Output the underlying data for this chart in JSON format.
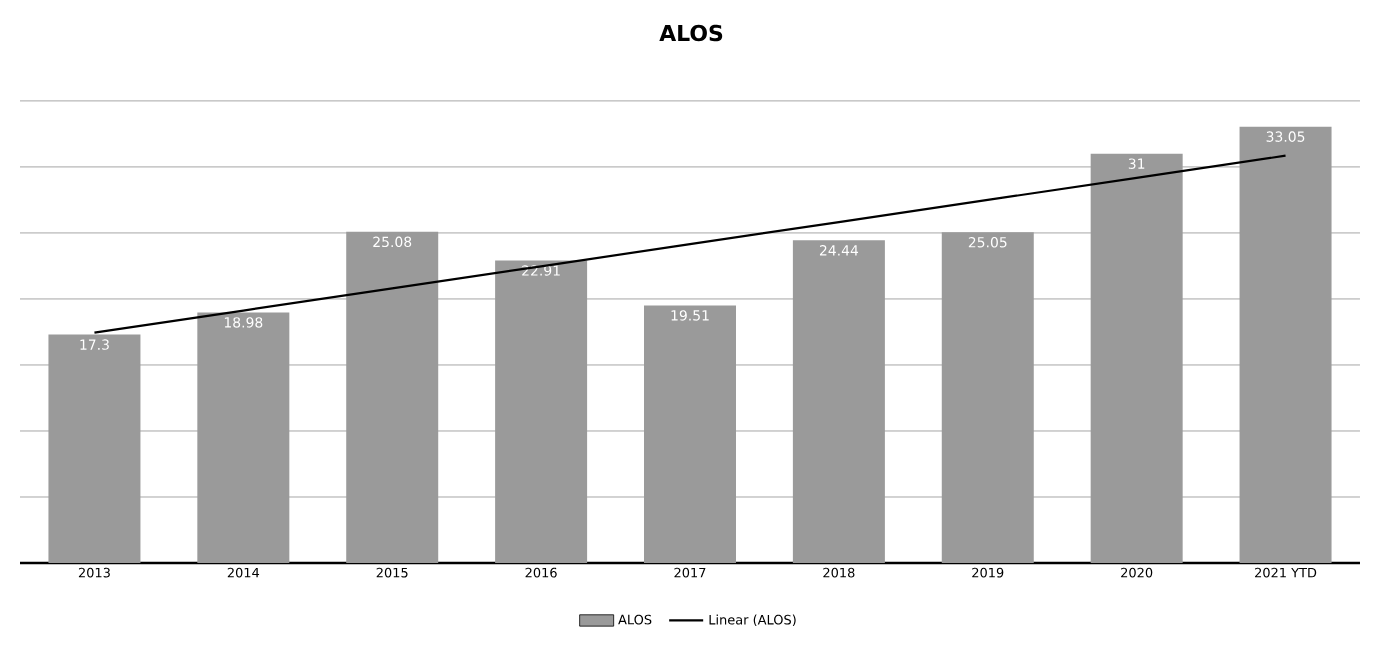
{
  "chart_data": {
    "type": "bar",
    "title": "ALOS",
    "categories": [
      "2013",
      "2014",
      "2015",
      "2016",
      "2017",
      "2018",
      "2019",
      "2020",
      "2021 YTD"
    ],
    "series": [
      {
        "name": "ALOS",
        "color": "#9a9a9a",
        "values": [
          17.3,
          18.98,
          25.08,
          22.91,
          19.51,
          24.44,
          25.05,
          31,
          33.05
        ],
        "value_labels": [
          "17.3",
          "18.98",
          "25.08",
          "22.91",
          "19.51",
          "24.44",
          "25.05",
          "31",
          "33.05"
        ]
      },
      {
        "name": "Linear (ALOS)",
        "type": "line",
        "color": "#000000",
        "values": [
          17.45,
          19.12,
          20.8,
          22.47,
          24.15,
          25.82,
          27.5,
          29.17,
          30.85
        ]
      }
    ],
    "tick_labels": "x",
    "grid": "y",
    "legend": "bottom",
    "marker": "none",
    "line_style": "solid"
  }
}
